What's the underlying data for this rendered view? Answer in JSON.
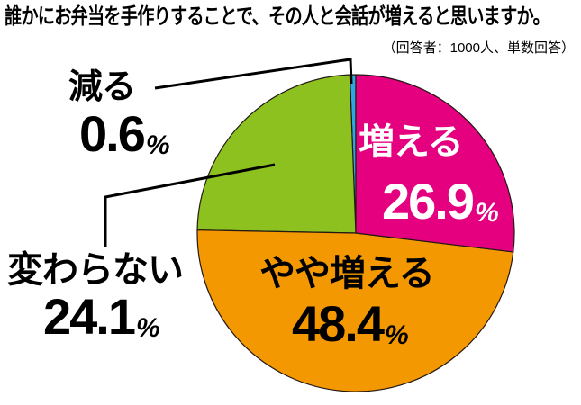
{
  "title": "誰かにお弁当を手作りすることで、その人と会話が増えると思いますか。",
  "subtitle": "（回答者：1000人、単数回答）",
  "chart_data": {
    "type": "pie",
    "title": "誰かにお弁当を手作りすることで、その人と会話が増えると思いますか。",
    "note": "（回答者：1000人、単数回答）",
    "start_angle_deg": 0,
    "direction": "clockwise",
    "unit": "%",
    "slices": [
      {
        "name": "increase",
        "label": "増える",
        "value": 26.9,
        "unit": "%",
        "color": "#E4007F",
        "text_color": "#FFFFFF",
        "label_placement": "inside"
      },
      {
        "name": "somewhat-increase",
        "label": "やや増える",
        "value": 48.4,
        "unit": "%",
        "color": "#F39800",
        "text_color": "#000000",
        "label_placement": "inside"
      },
      {
        "name": "no-change",
        "label": "変わらない",
        "value": 24.1,
        "unit": "%",
        "color": "#8CC11F",
        "text_color": "#000000",
        "label_placement": "outside-left"
      },
      {
        "name": "decrease",
        "label": "減る",
        "value": 0.6,
        "unit": "%",
        "color": "#2EA7E0",
        "text_color": "#000000",
        "label_placement": "outside-left"
      }
    ]
  }
}
